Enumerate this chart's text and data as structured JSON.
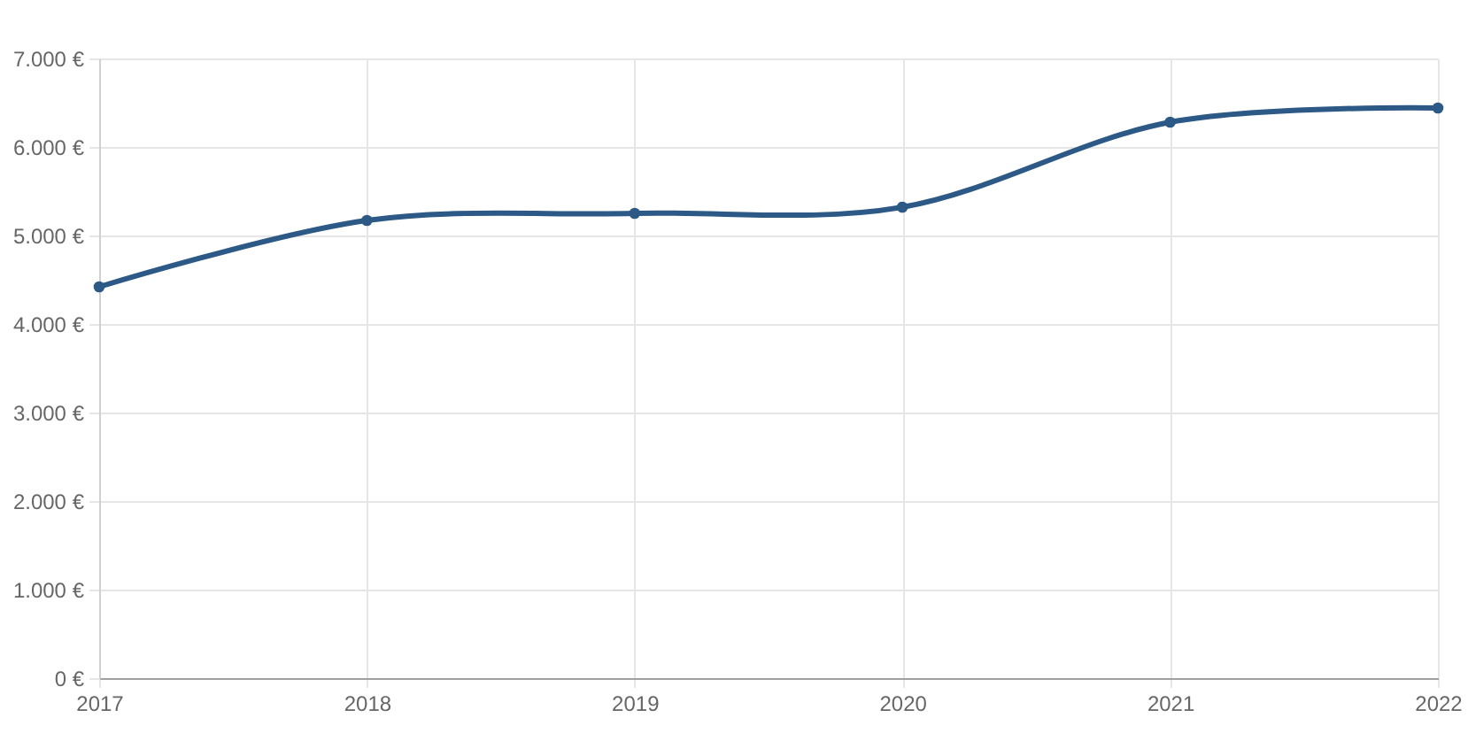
{
  "chart_data": {
    "type": "line",
    "x": [
      2017,
      2018,
      2019,
      2020,
      2021,
      2022
    ],
    "series": [
      {
        "color": "#2c5985",
        "values": [
          4420,
          5170,
          5250,
          5320,
          6280,
          6440
        ]
      }
    ],
    "xlim": [
      2017,
      2022
    ],
    "xticks": [
      2017,
      2018,
      2019,
      2020,
      2021,
      2022
    ],
    "ylim": [
      0,
      7000
    ],
    "yticks": [
      {
        "value": 0,
        "label": "0 €"
      },
      {
        "value": 1000,
        "label": "1.000 €"
      },
      {
        "value": 2000,
        "label": "2.000 €"
      },
      {
        "value": 3000,
        "label": "3.000 €"
      },
      {
        "value": 4000,
        "label": "4.000 €"
      },
      {
        "value": 5000,
        "label": "5.000 €"
      },
      {
        "value": 6000,
        "label": "6.000 €"
      },
      {
        "value": 7000,
        "label": "7.000 €"
      }
    ],
    "grid": true,
    "marker": "circle"
  }
}
